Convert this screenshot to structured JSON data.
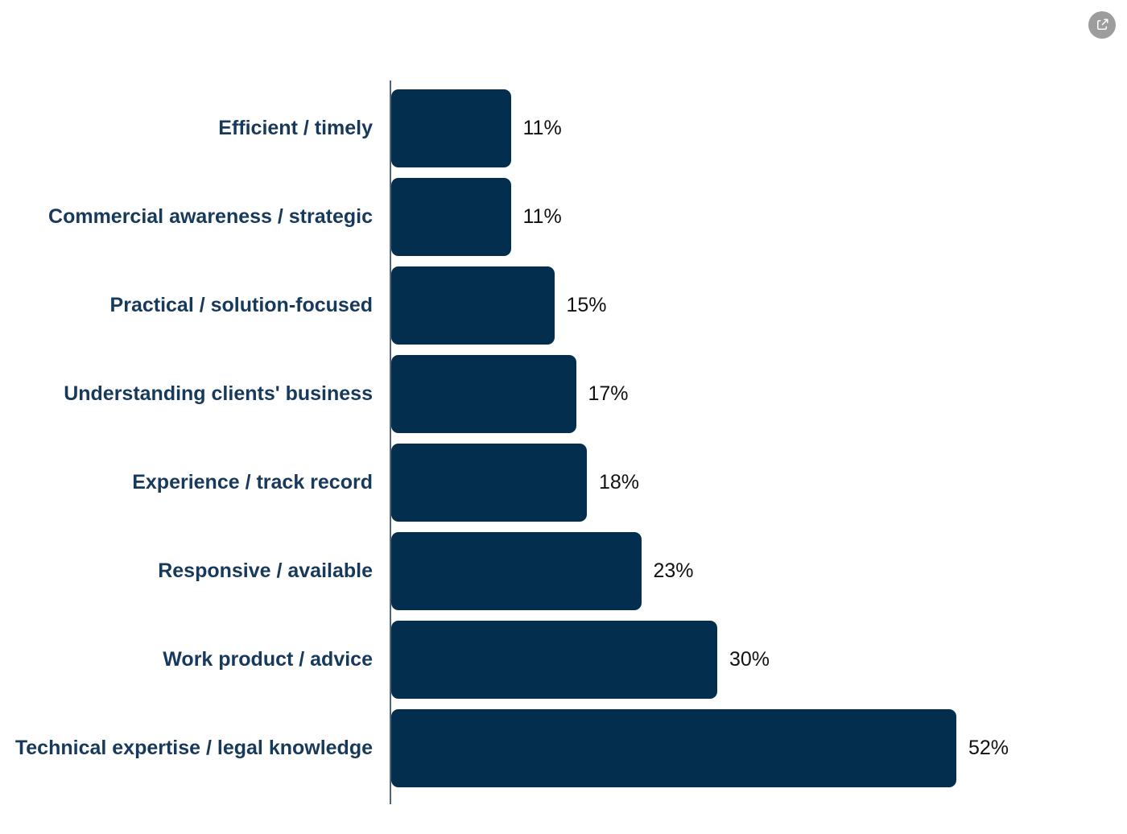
{
  "page": {
    "background": "#ffffff"
  },
  "toolbar": {
    "share_button": {
      "icon": "share-export-icon"
    }
  },
  "colors": {
    "background": "#ffffff",
    "bar": "#042e4d",
    "category_label": "#16395c",
    "value_label": "#111111",
    "axis_line": "#4f6479",
    "share_button_bg": "#9d9d9d",
    "share_icon": "#ffffff"
  },
  "chart_data": {
    "type": "bar",
    "orientation": "horizontal",
    "order": "top-to-bottom",
    "title": "",
    "xlabel": "",
    "ylabel": "",
    "categories": [
      "Efficient / timely",
      "Commercial awareness / strategic",
      "Practical / solution-focused",
      "Understanding clients' business",
      "Experience / track record",
      "Responsive / available",
      "Work product / advice",
      "Technical expertise / legal knowledge"
    ],
    "values": [
      11,
      11,
      15,
      17,
      18,
      23,
      30,
      52
    ],
    "value_labels": [
      "11%",
      "11%",
      "15%",
      "17%",
      "18%",
      "23%",
      "30%",
      "52%"
    ],
    "xlim": [
      0,
      52
    ],
    "grid": false,
    "legend": false,
    "value_label_position": "outside-end"
  }
}
